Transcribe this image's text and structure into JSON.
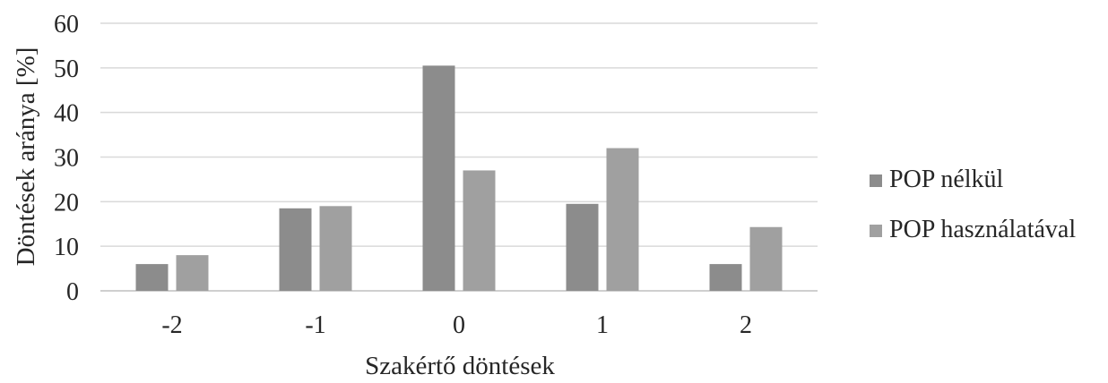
{
  "chart_data": {
    "type": "bar",
    "title": "",
    "xlabel": "Szakértő döntések",
    "ylabel": "Döntések aránya [%]",
    "categories": [
      "-2",
      "-1",
      "0",
      "1",
      "2"
    ],
    "ylim": [
      0,
      60
    ],
    "yticks": [
      0,
      10,
      20,
      30,
      40,
      50,
      60
    ],
    "grid": true,
    "legend_position": "right",
    "series": [
      {
        "name": "POP nélkül",
        "color": "#8c8c8c",
        "values": [
          6,
          18.5,
          50.5,
          19.5,
          6
        ]
      },
      {
        "name": "POP használatával",
        "color": "#a0a0a0",
        "values": [
          8,
          19,
          27,
          32,
          14.3
        ]
      }
    ]
  }
}
